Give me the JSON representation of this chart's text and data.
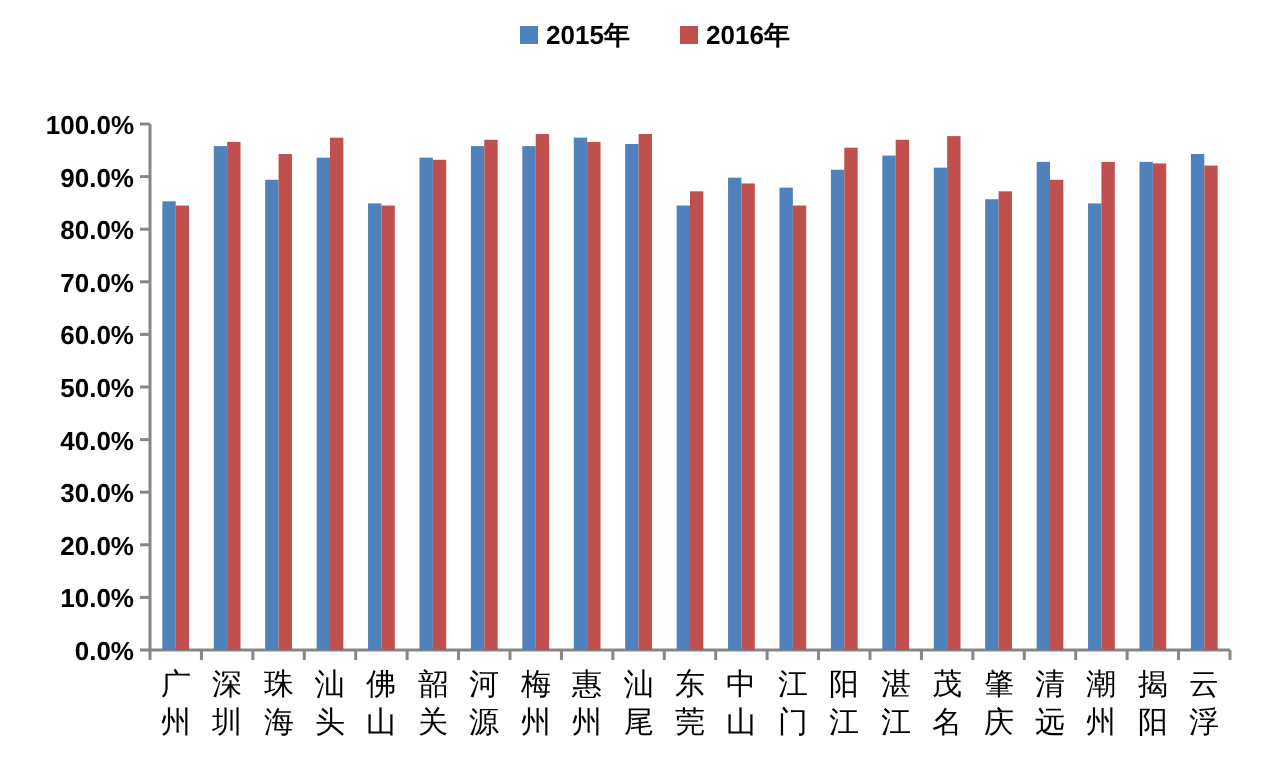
{
  "chart_data": {
    "type": "bar",
    "categories": [
      "广州",
      "深圳",
      "珠海",
      "汕头",
      "佛山",
      "韶关",
      "河源",
      "梅州",
      "惠州",
      "汕尾",
      "东莞",
      "中山",
      "江门",
      "阳江",
      "湛江",
      "茂名",
      "肇庆",
      "清远",
      "潮州",
      "揭阳",
      "云浮"
    ],
    "series": [
      {
        "name": "2015年",
        "color": "#4f81bd",
        "values": [
          85.3,
          95.8,
          89.4,
          93.6,
          84.9,
          93.6,
          95.8,
          95.8,
          97.4,
          96.2,
          84.5,
          89.8,
          87.9,
          91.3,
          94.0,
          91.7,
          85.7,
          92.8,
          84.9,
          92.8,
          94.3
        ]
      },
      {
        "name": "2016年",
        "color": "#c0504d",
        "values": [
          84.5,
          96.6,
          94.3,
          97.4,
          84.5,
          93.2,
          97.0,
          98.1,
          96.6,
          98.1,
          87.2,
          88.7,
          84.5,
          95.5,
          97.0,
          97.7,
          87.2,
          89.4,
          92.8,
          92.5,
          92.1
        ]
      }
    ],
    "ylim": [
      0,
      100
    ],
    "yticks": [
      {
        "value": 0,
        "label": "0.0%"
      },
      {
        "value": 10,
        "label": "10.0%"
      },
      {
        "value": 20,
        "label": "20.0%"
      },
      {
        "value": 30,
        "label": "30.0%"
      },
      {
        "value": 40,
        "label": "40.0%"
      },
      {
        "value": 50,
        "label": "50.0%"
      },
      {
        "value": 60,
        "label": "60.0%"
      },
      {
        "value": 70,
        "label": "70.0%"
      },
      {
        "value": 80,
        "label": "80.0%"
      },
      {
        "value": 90,
        "label": "90.0%"
      },
      {
        "value": 100,
        "label": "100.0%"
      }
    ],
    "legend": "top"
  }
}
